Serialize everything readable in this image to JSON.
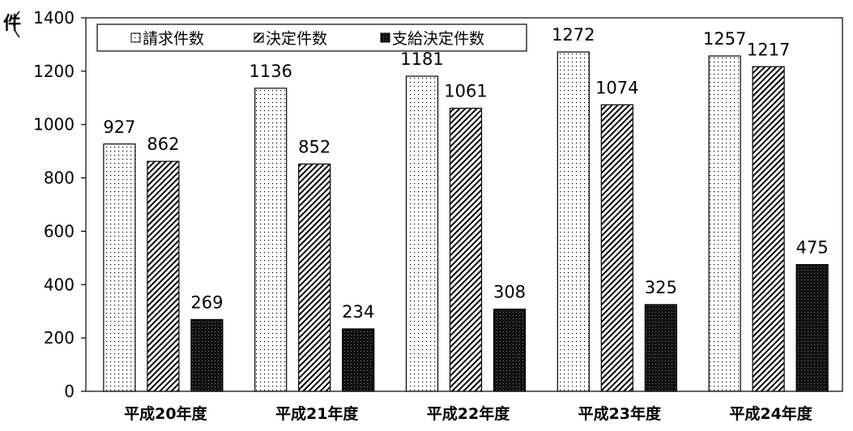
{
  "chart_data": {
    "type": "bar",
    "ylabel": "件",
    "ylim": [
      0,
      1400
    ],
    "yticks": [
      0,
      200,
      400,
      600,
      800,
      1000,
      1200,
      1400
    ],
    "categories": [
      "平成20年度",
      "平成21年度",
      "平成22年度",
      "平成23年度",
      "平成24年度"
    ],
    "series": [
      {
        "name": "請求件数",
        "pattern": "dots",
        "values": [
          927,
          1136,
          1181,
          1272,
          1257
        ],
        "labels": [
          "927",
          "1136",
          "1181",
          "1272",
          "1257"
        ]
      },
      {
        "name": "決定件数",
        "pattern": "hatch",
        "values": [
          862,
          852,
          1061,
          1074,
          1217
        ],
        "labels": [
          "862",
          "852",
          "1061",
          "1074",
          "1217"
        ]
      },
      {
        "name": "支給決定件数",
        "pattern": "dark",
        "values": [
          269,
          234,
          308,
          325,
          475
        ],
        "labels": [
          "269",
          "234",
          "308",
          "325",
          "475"
        ]
      }
    ],
    "legend": "top",
    "grid": false
  }
}
